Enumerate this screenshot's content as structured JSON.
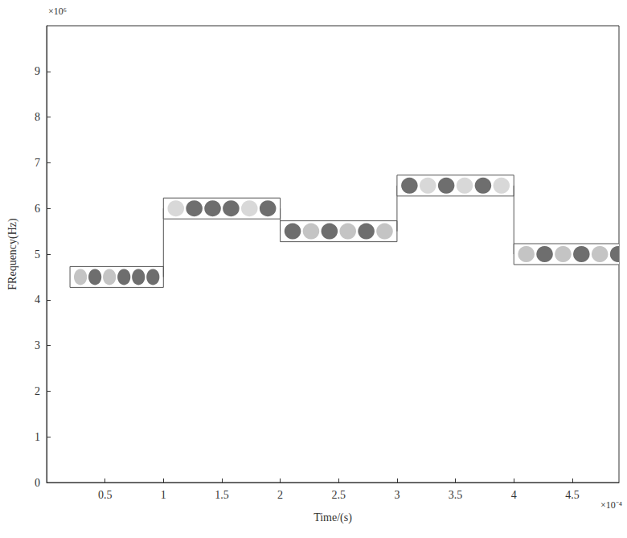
{
  "chart_data": {
    "type": "frequency_hopping",
    "x_label": "Time/(s)",
    "y_label": "FRequency(Hz)",
    "annotations": [
      "×10⁶",
      "×10⁻⁴"
    ],
    "xlim": [
      0,
      4.9
    ],
    "xticks": [
      0.5,
      1,
      1.5,
      2,
      2.5,
      3,
      3.5,
      4,
      4.5
    ],
    "ylim": [
      0,
      10
    ],
    "yticks": [
      0,
      1,
      2,
      3,
      4,
      5,
      6,
      7,
      8,
      9
    ],
    "grid": false,
    "hops": {
      "start": [
        0.2,
        1.0,
        2.0,
        3.0,
        4.0
      ],
      "end": [
        1.0,
        2.0,
        3.0,
        4.0,
        5.0
      ],
      "values": [
        4.5,
        6.0,
        5.5,
        6.5,
        5.0
      ],
      "colors": [
        [
          "#c4c4c4",
          "#6e6e6e",
          "#c4c4c4",
          "#6e6e6e",
          "#6e6e6e",
          "#6e6e6e"
        ],
        [
          "#d8d8d8",
          "#6e6e6e",
          "#6e6e6e",
          "#6e6e6e",
          "#d8d8d8",
          "#6e6e6e"
        ],
        [
          "#6e6e6e",
          "#c4c4c4",
          "#6e6e6e",
          "#c4c4c4",
          "#6e6e6e",
          "#c4c4c4"
        ],
        [
          "#6e6e6e",
          "#d8d8d8",
          "#6e6e6e",
          "#d8d8d8",
          "#6e6e6e",
          "#d8d8d8"
        ],
        [
          "#c4c4c4",
          "#6e6e6e",
          "#c4c4c4",
          "#6e6e6e",
          "#c4c4c4",
          "#6e6e6e"
        ]
      ]
    }
  }
}
